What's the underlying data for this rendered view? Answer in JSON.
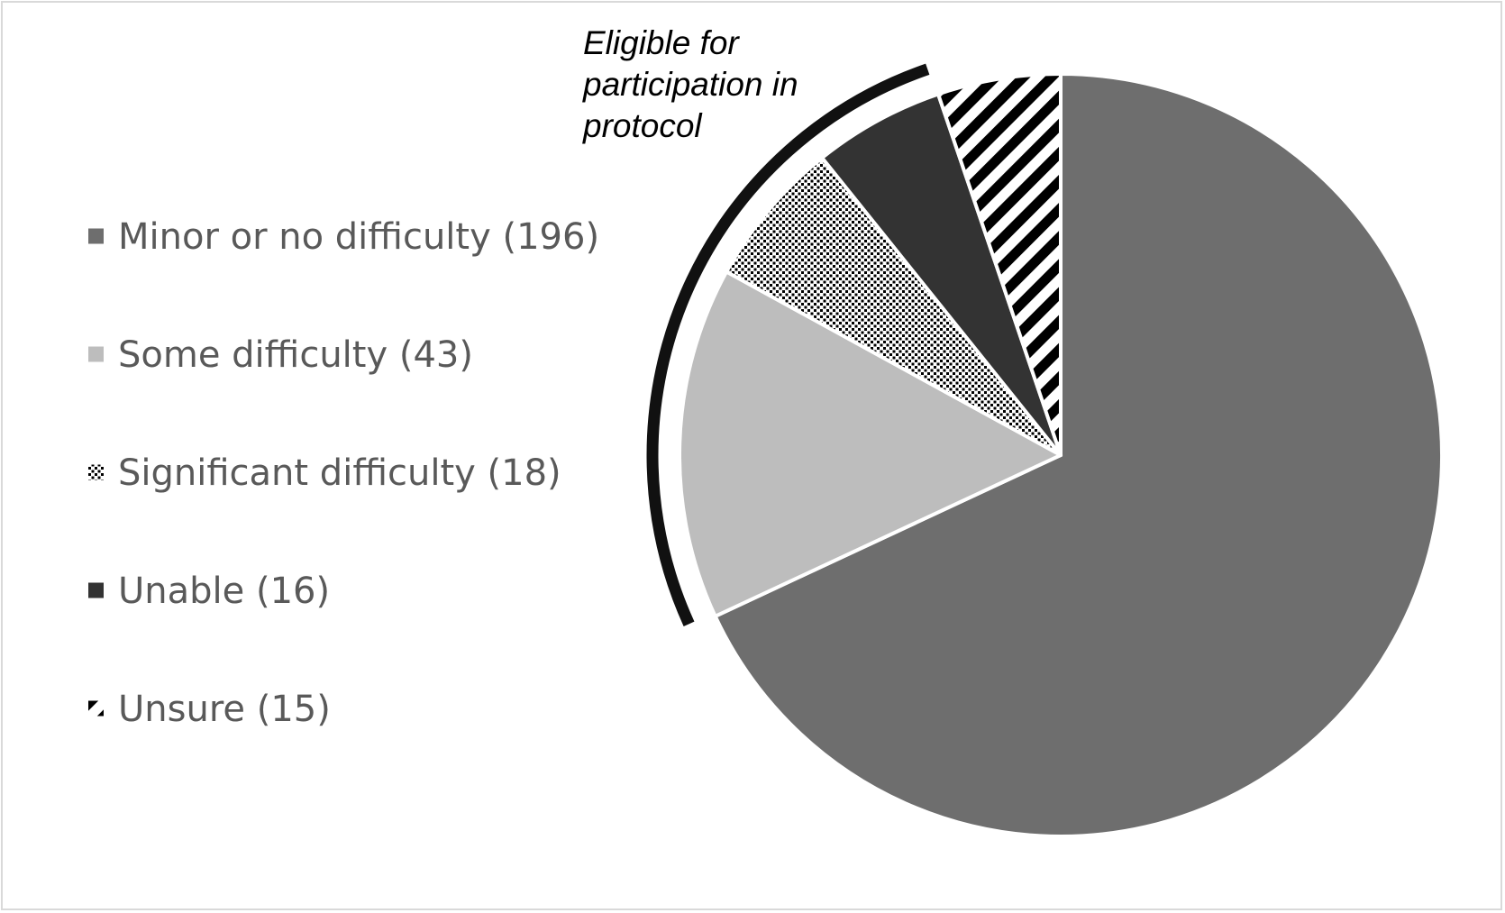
{
  "chart_data": {
    "type": "pie",
    "title": "",
    "categories": [
      "Minor or no difficulty",
      "Some difficulty",
      "Significant difficulty",
      "Unable",
      "Unsure"
    ],
    "values": [
      196,
      43,
      18,
      16,
      15
    ],
    "legend_labels": [
      "Minor or no difficulty (196)",
      "Some difficulty (43)",
      "Significant difficulty (18)",
      "Unable (16)",
      "Unsure (15)"
    ],
    "fills": [
      {
        "kind": "solid",
        "color": "#6e6e6e"
      },
      {
        "kind": "solid",
        "color": "#bdbdbd"
      },
      {
        "kind": "dots",
        "color": "#000000"
      },
      {
        "kind": "solid",
        "color": "#333333"
      },
      {
        "kind": "stripes",
        "color": "#000000"
      }
    ],
    "legend_placement": "left",
    "start_angle": "12 o'clock",
    "direction": "clockwise",
    "annotation": {
      "lines": [
        "Eligible for",
        "participation in",
        "protocol"
      ],
      "spans": [
        "Some difficulty",
        "Significant difficulty",
        "Unable"
      ]
    }
  }
}
